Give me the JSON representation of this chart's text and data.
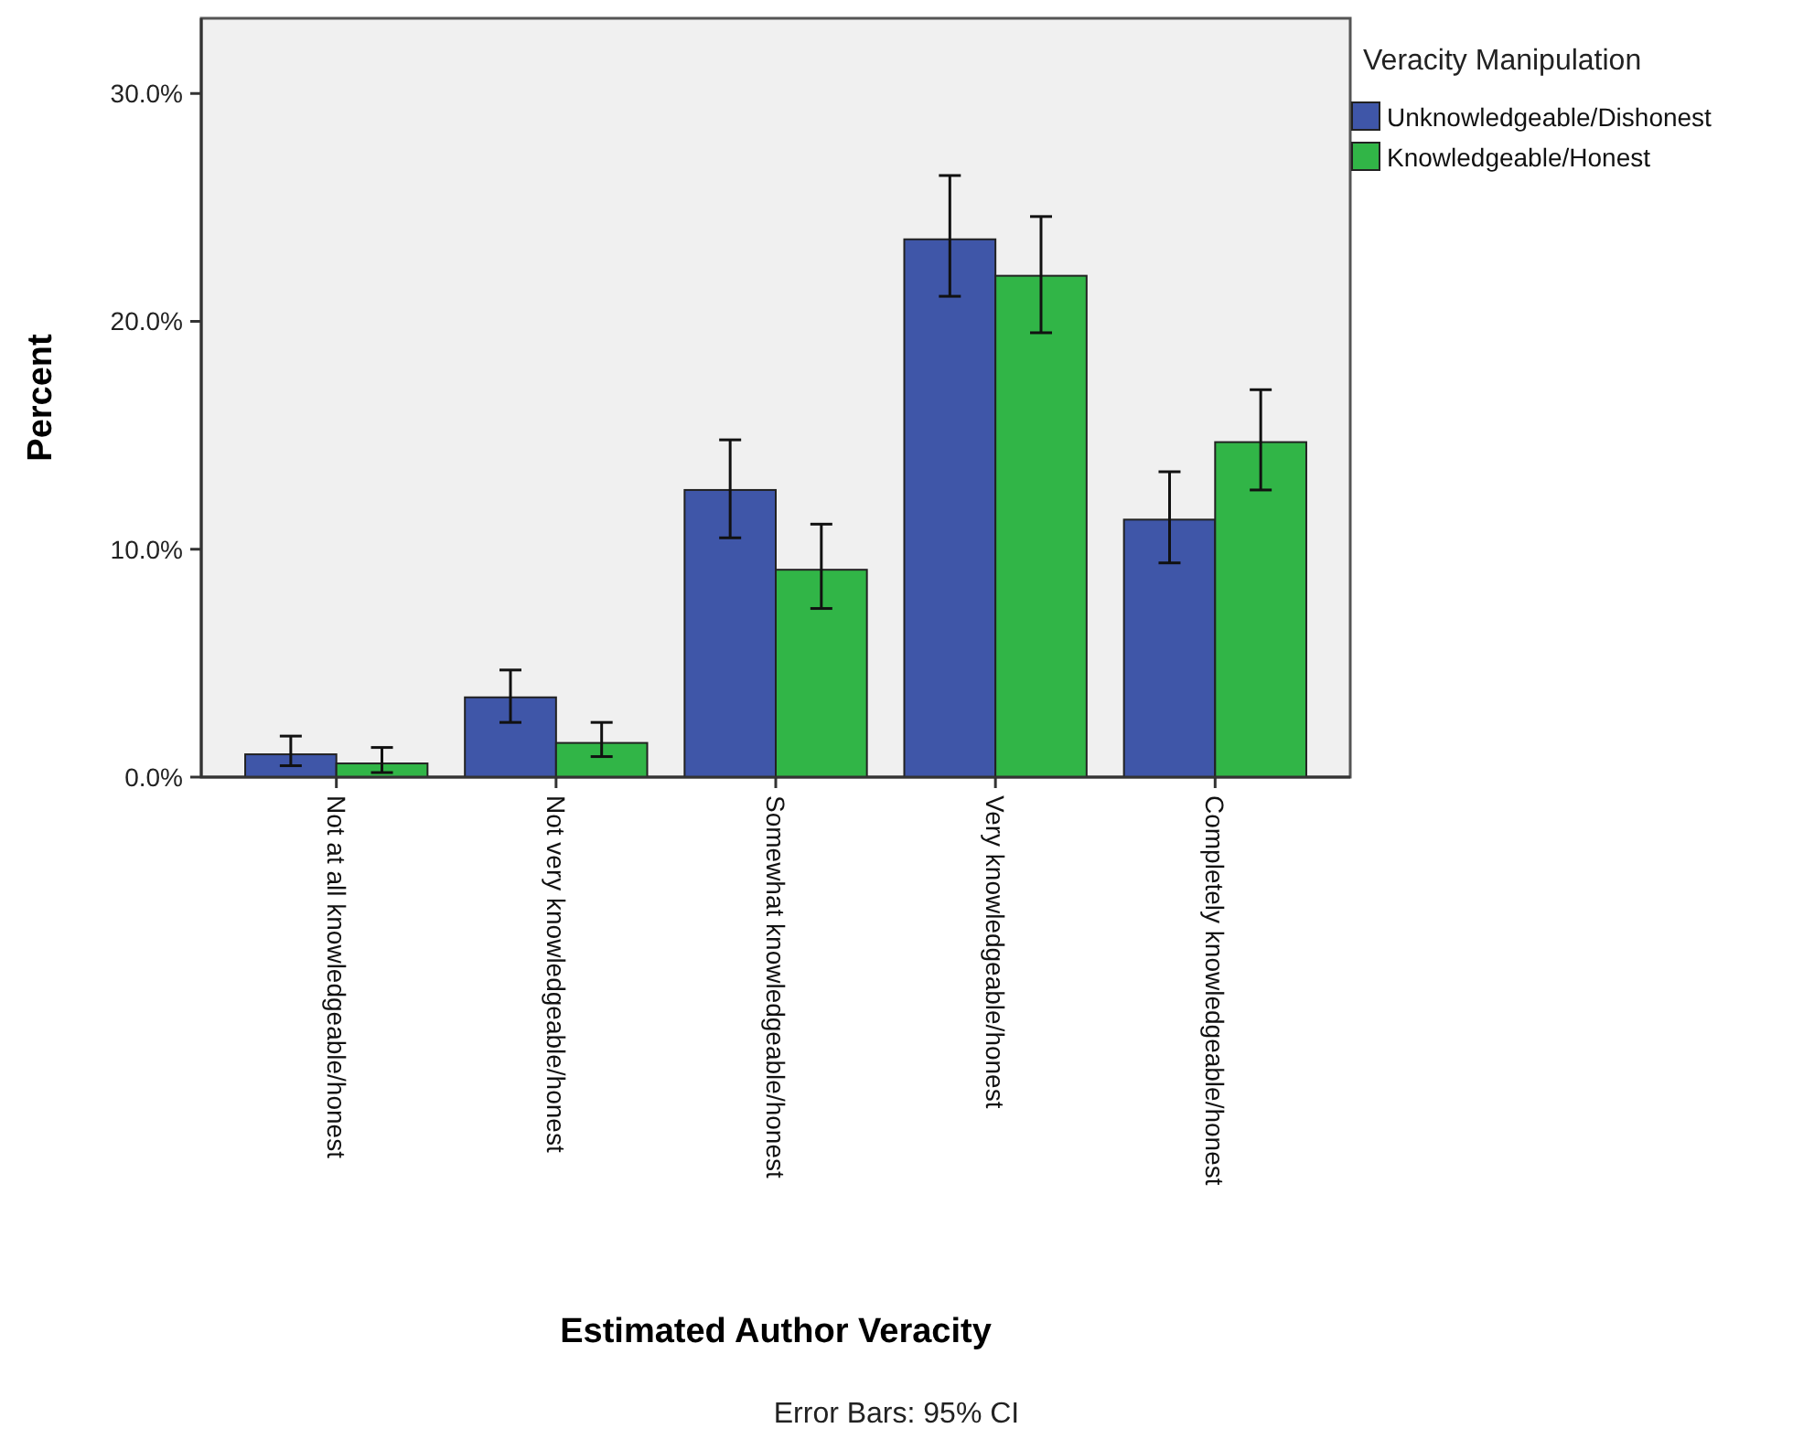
{
  "chart_data": {
    "type": "bar",
    "xlabel": "Estimated Author Veracity",
    "ylabel": "Percent",
    "legend_title": "Veracity Manipulation",
    "annotations": [
      "Error Bars: 95% CI"
    ],
    "categories": [
      "Not at all knowledgeable/honest",
      "Not very knowledgeable/honest",
      "Somewhat knowledgeable/honest",
      "Very knowledgeable/honest",
      "Completely knowledgeable/honest"
    ],
    "series": [
      {
        "name": "Unknowledgeable/Dishonest",
        "color": "#3f56a8",
        "values": [
          1.0,
          3.5,
          12.6,
          23.6,
          11.3
        ],
        "errors": [
          [
            0.5,
            1.8
          ],
          [
            2.4,
            4.7
          ],
          [
            10.5,
            14.8
          ],
          [
            21.1,
            26.4
          ],
          [
            9.4,
            13.4
          ]
        ]
      },
      {
        "name": "Knowledgeable/Honest",
        "color": "#31b547",
        "values": [
          0.6,
          1.5,
          9.1,
          22.0,
          14.7
        ],
        "errors": [
          [
            0.2,
            1.3
          ],
          [
            0.9,
            2.4
          ],
          [
            7.4,
            11.1
          ],
          [
            19.5,
            24.6
          ],
          [
            12.6,
            17.0
          ]
        ]
      }
    ],
    "ylim": [
      0,
      33.3
    ],
    "yticks": [
      {
        "value": 0,
        "label": "0.0%"
      },
      {
        "value": 10,
        "label": "10.0%"
      },
      {
        "value": 20,
        "label": "20.0%"
      },
      {
        "value": 30,
        "label": "30.0%"
      }
    ],
    "legend": "top right",
    "grid": false
  }
}
